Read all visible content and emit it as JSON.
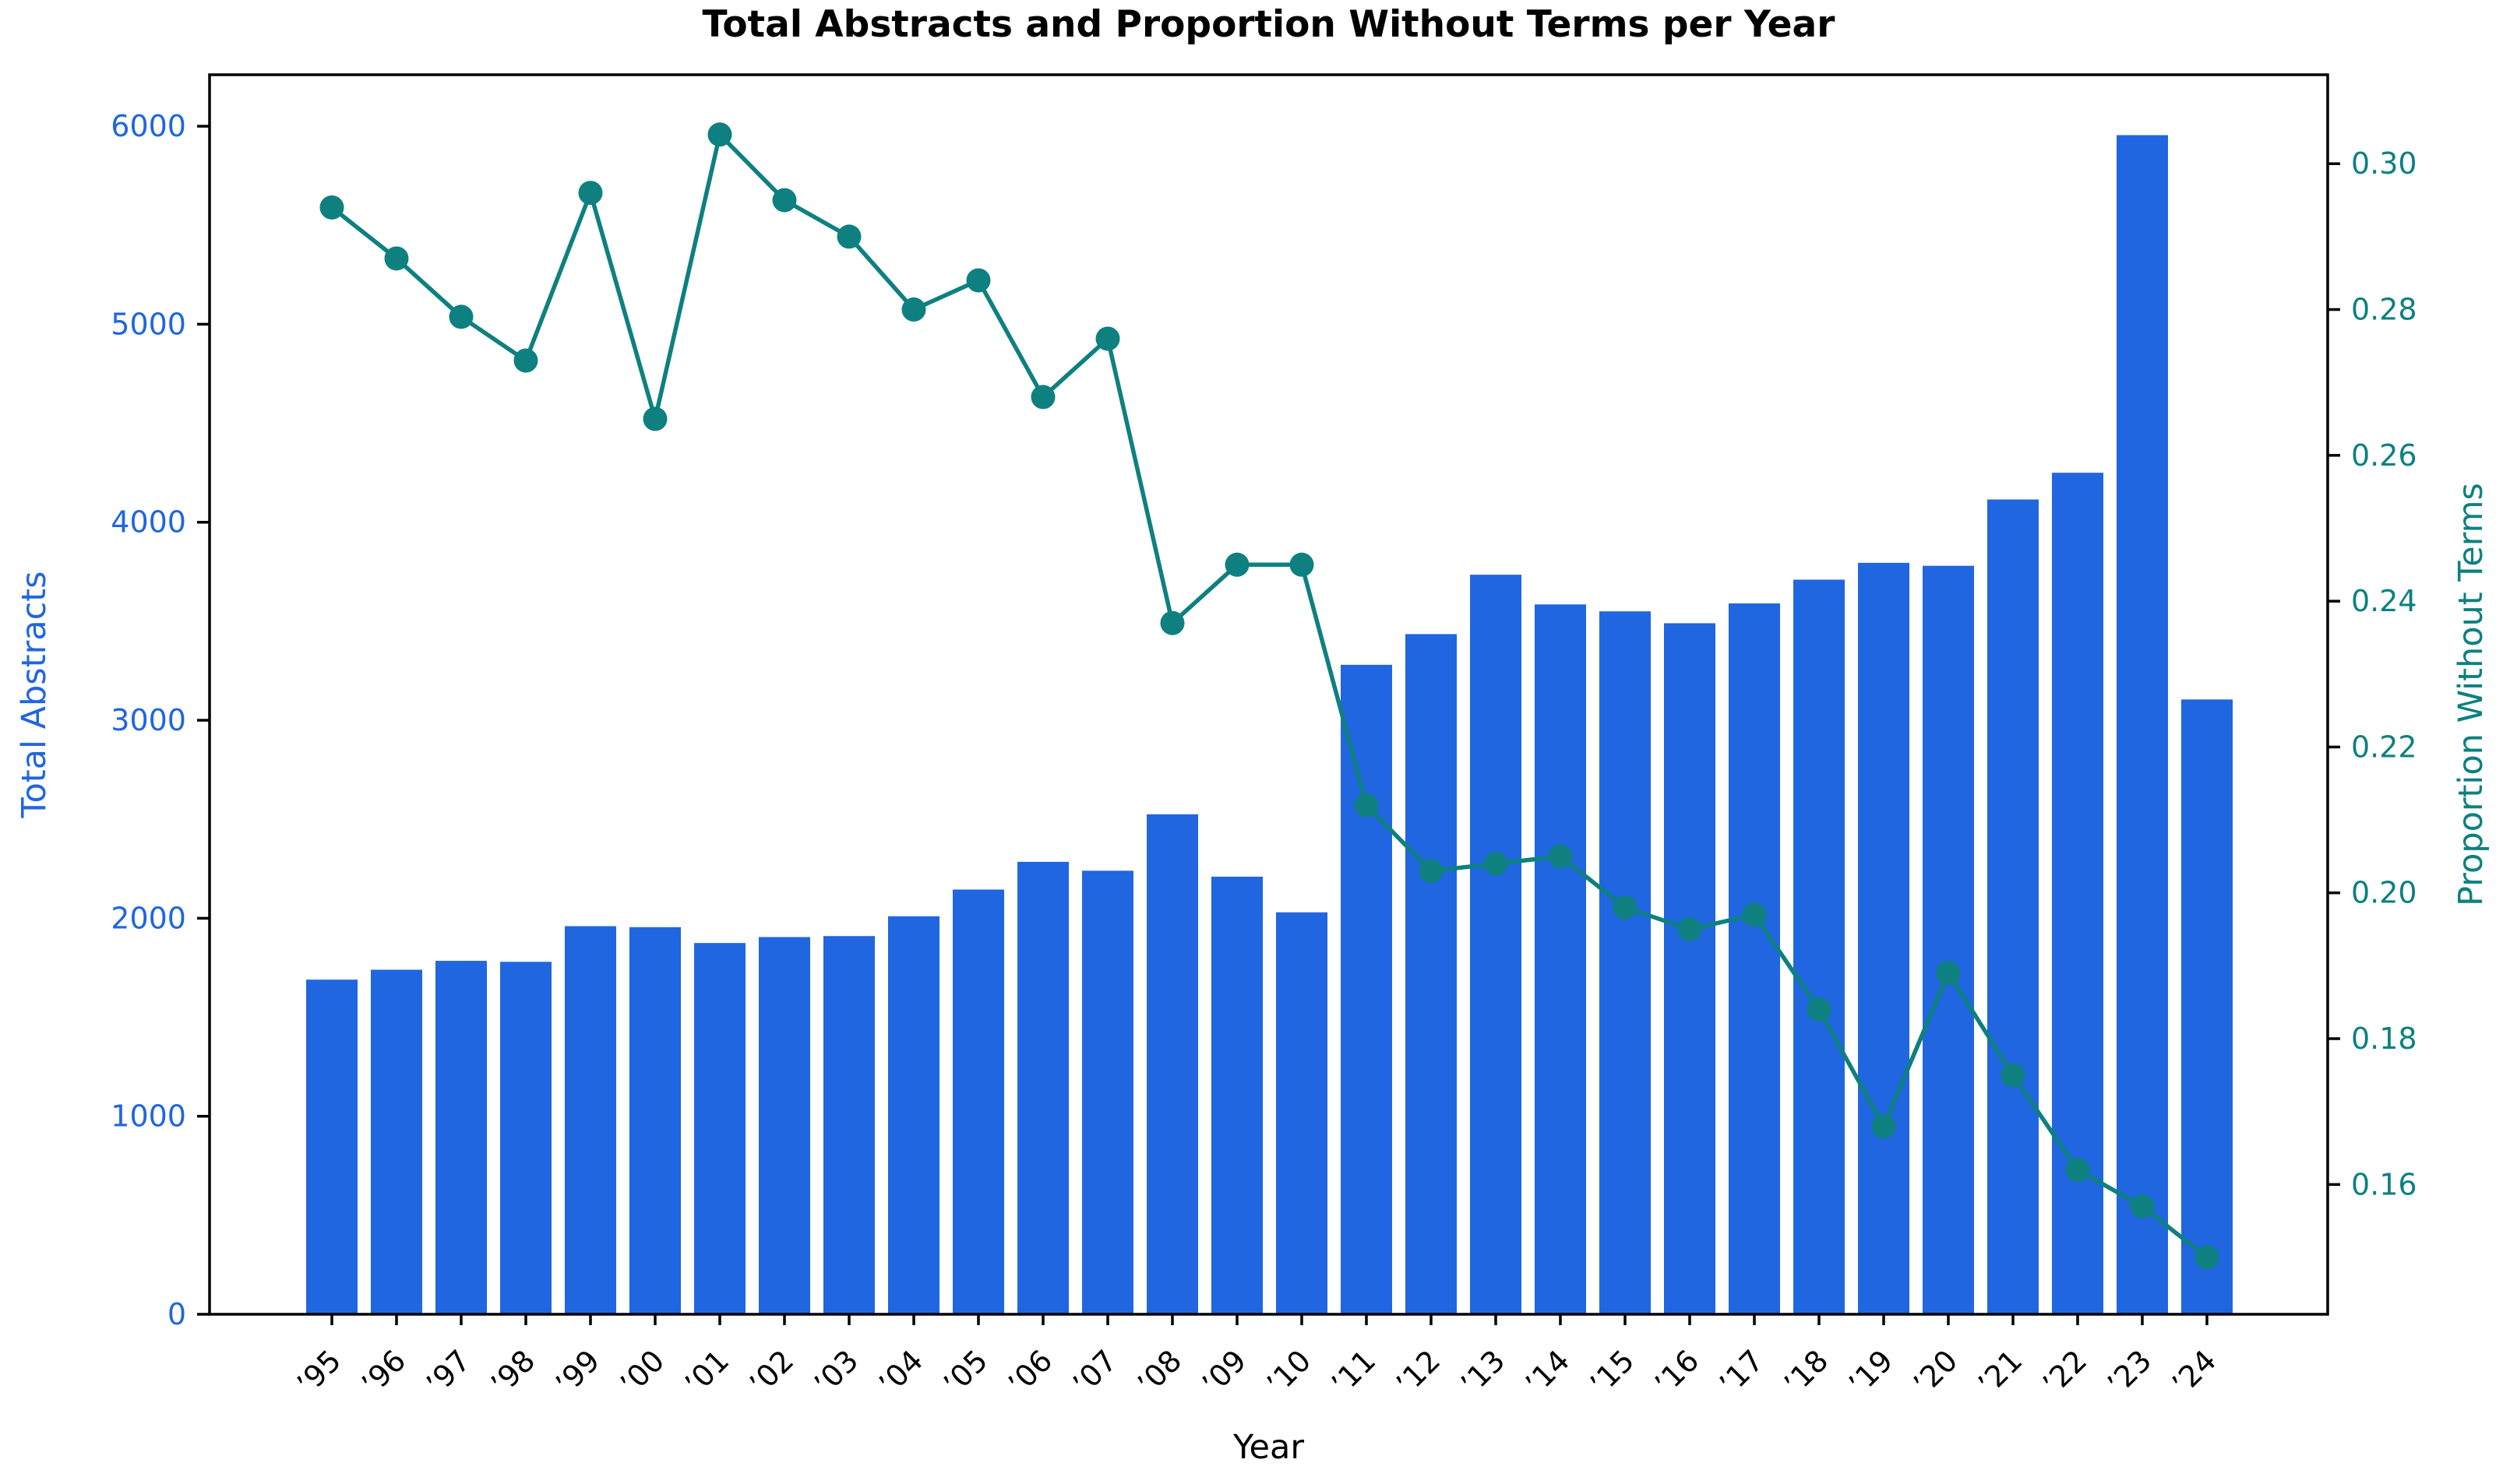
{
  "chart_data": {
    "type": "bar",
    "title": "Total Abstracts and Proportion Without Terms per Year",
    "xlabel": "Year",
    "ylabel_left": "Total Abstracts",
    "ylabel_right": "Proportion Without Terms",
    "categories": [
      "’95",
      "’96",
      "’97",
      "’98",
      "’99",
      "’00",
      "’01",
      "’02",
      "’03",
      "’04",
      "’05",
      "’06",
      "’07",
      "’08",
      "’09",
      "’10",
      "’11",
      "’12",
      "’13",
      "’14",
      "’15",
      "’16",
      "’17",
      "’18",
      "’19",
      "’20",
      "’21",
      "’22",
      "’23",
      "’24"
    ],
    "series": [
      {
        "name": "Total Abstracts",
        "type": "bar",
        "axis": "left",
        "color": "#2066E0",
        "values": [
          1690,
          1740,
          1785,
          1780,
          1960,
          1955,
          1875,
          1905,
          1910,
          2010,
          2145,
          2285,
          2240,
          2525,
          2210,
          2030,
          3280,
          3435,
          3735,
          3585,
          3550,
          3490,
          3590,
          3710,
          3795,
          3780,
          4115,
          4250,
          5955,
          3105
        ]
      },
      {
        "name": "Proportion Without Terms",
        "type": "line",
        "axis": "right",
        "color": "#0E8080",
        "values": [
          0.294,
          0.287,
          0.279,
          0.273,
          0.296,
          0.265,
          0.304,
          0.295,
          0.29,
          0.28,
          0.284,
          0.268,
          0.276,
          0.237,
          0.245,
          0.245,
          0.212,
          0.203,
          0.204,
          0.205,
          0.198,
          0.195,
          0.197,
          0.184,
          0.168,
          0.189,
          0.175,
          0.162,
          0.157,
          0.15
        ]
      }
    ],
    "axes": {
      "left": {
        "lim": [
          0,
          6260
        ],
        "ticks": [
          0,
          1000,
          2000,
          3000,
          4000,
          5000,
          6000
        ],
        "color": "#2066E0"
      },
      "right": {
        "lim": [
          0.1422,
          0.3122
        ],
        "ticks": [
          0.16,
          0.18,
          0.2,
          0.22,
          0.24,
          0.26,
          0.28,
          0.3
        ],
        "color": "#0E8080"
      }
    },
    "grid": false,
    "spine_color": "#000000",
    "tick_label_color_x": "#000000"
  }
}
